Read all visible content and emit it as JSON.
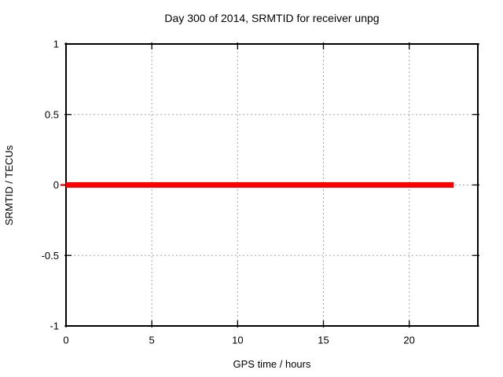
{
  "window": {
    "background": "#ffffff"
  },
  "chart_data": {
    "type": "line",
    "title": "Day 300 of 2014, SRMTID for receiver unpg",
    "xlabel": "GPS time / hours",
    "ylabel": "SRMTID / TECUs",
    "xlim": [
      0,
      24
    ],
    "ylim": [
      -1,
      1
    ],
    "x_ticks": [
      0,
      5,
      10,
      15,
      20
    ],
    "y_ticks": [
      -1,
      -0.5,
      0,
      0.5,
      1
    ],
    "grid": true,
    "grid_color": "#a8a8a8",
    "axis_color": "#000000",
    "legend_position": "none",
    "series": [
      {
        "name": "SRMTID",
        "color": "#ff0000",
        "line_width": 7,
        "x": [
          0,
          22.6
        ],
        "y": [
          0,
          0
        ]
      }
    ]
  }
}
